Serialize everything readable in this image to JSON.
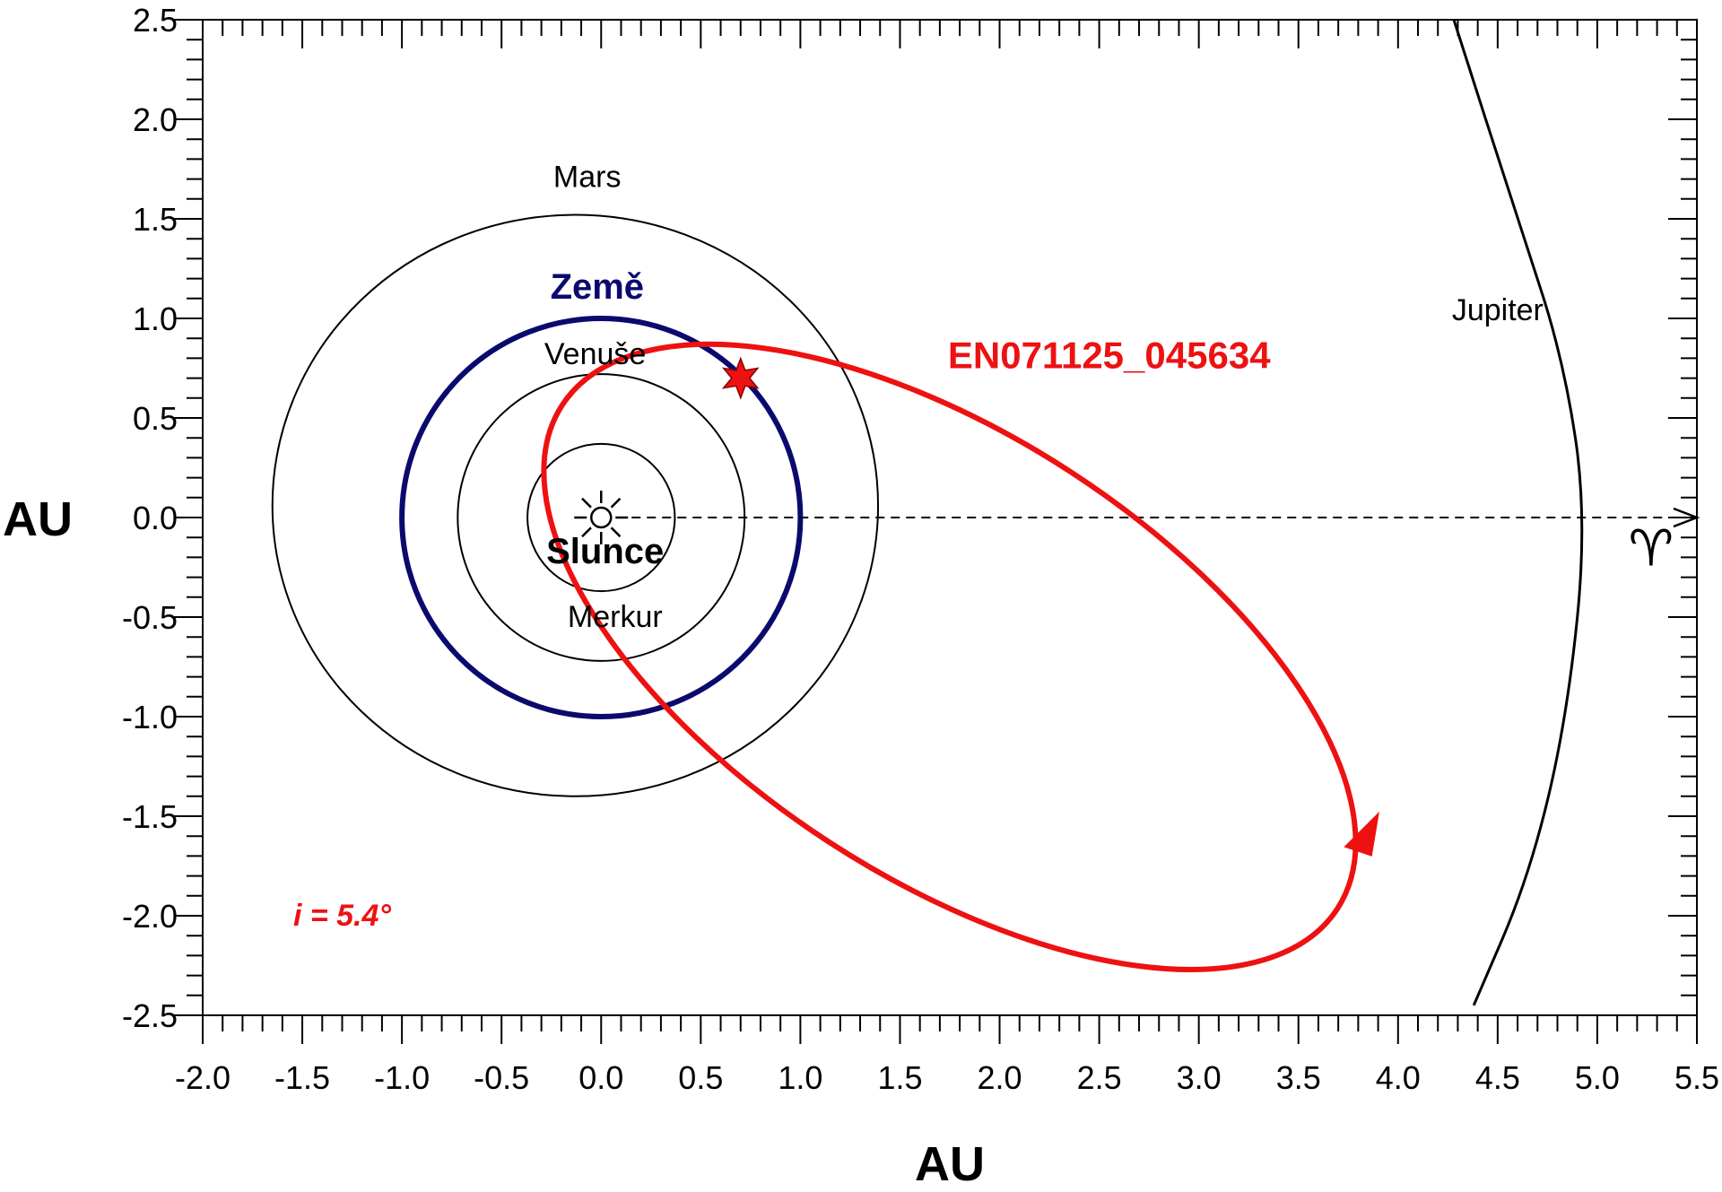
{
  "chart_data": {
    "type": "scatter",
    "xlabel": "AU",
    "ylabel": "AU",
    "xlim": [
      -2.0,
      5.5
    ],
    "ylim": [
      -2.5,
      2.5
    ],
    "x_ticks": [
      "-2.0",
      "-1.5",
      "-1.0",
      "-0.5",
      "0.0",
      "0.5",
      "1.0",
      "1.5",
      "2.0",
      "2.5",
      "3.0",
      "3.5",
      "4.0",
      "4.5",
      "5.0",
      "5.5"
    ],
    "y_ticks": [
      "2.5",
      "2.0",
      "1.5",
      "1.0",
      "0.5",
      "0.0",
      "-0.5",
      "-1.0",
      "-1.5",
      "-2.0",
      "-2.5"
    ],
    "sun": {
      "label": "Slunce",
      "x": 0.0,
      "y": 0.0
    },
    "orbits": [
      {
        "name": "Merkur",
        "cx": 0.0,
        "cy": 0.0,
        "rx": 0.37,
        "ry": 0.37,
        "color": "#000000"
      },
      {
        "name": "Venuše",
        "cx": 0.0,
        "cy": 0.0,
        "rx": 0.72,
        "ry": 0.72,
        "color": "#000000"
      },
      {
        "name": "Země",
        "cx": 0.0,
        "cy": 0.0,
        "rx": 1.0,
        "ry": 1.0,
        "color": "#0a0a6e"
      },
      {
        "name": "Mars",
        "cx": -0.13,
        "cy": 0.06,
        "rx": 1.52,
        "ry": 1.46,
        "color": "#000000"
      }
    ],
    "jupiter": {
      "name": "Jupiter",
      "points": [
        [
          4.28,
          2.5
        ],
        [
          4.6,
          1.5
        ],
        [
          4.83,
          0.8
        ],
        [
          4.95,
          0.0
        ],
        [
          4.85,
          -1.0
        ],
        [
          4.66,
          -1.8
        ],
        [
          4.38,
          -2.45
        ]
      ]
    },
    "meteoroid": {
      "name": "EN071125_045634",
      "color": "#ee1111",
      "cx": 1.75,
      "cy": -0.7,
      "a": 2.32,
      "b": 1.11,
      "angle_deg": -33,
      "impact_point": {
        "x": 0.7,
        "y": 0.7
      },
      "direction_marker": {
        "x": 3.84,
        "y": -1.6
      }
    },
    "vernal_equinox": {
      "symbol": "♈",
      "from": [
        0.0,
        0.0
      ],
      "to": [
        5.5,
        0.0
      ]
    },
    "inclination_label": "i = 5.4°",
    "label_positions_au": {
      "Merkur": [
        0.07,
        -0.55
      ],
      "Venuše": [
        -0.03,
        0.77
      ],
      "Země": [
        -0.02,
        1.1
      ],
      "Mars": [
        -0.07,
        1.66
      ],
      "Jupiter": [
        4.5,
        0.99
      ],
      "EN071125_045634": [
        2.55,
        0.75
      ],
      "Slunce": [
        0.02,
        -0.23
      ],
      "inclination": [
        -1.3,
        -2.05
      ],
      "equinox_symbol": [
        5.27,
        -0.24
      ]
    }
  }
}
